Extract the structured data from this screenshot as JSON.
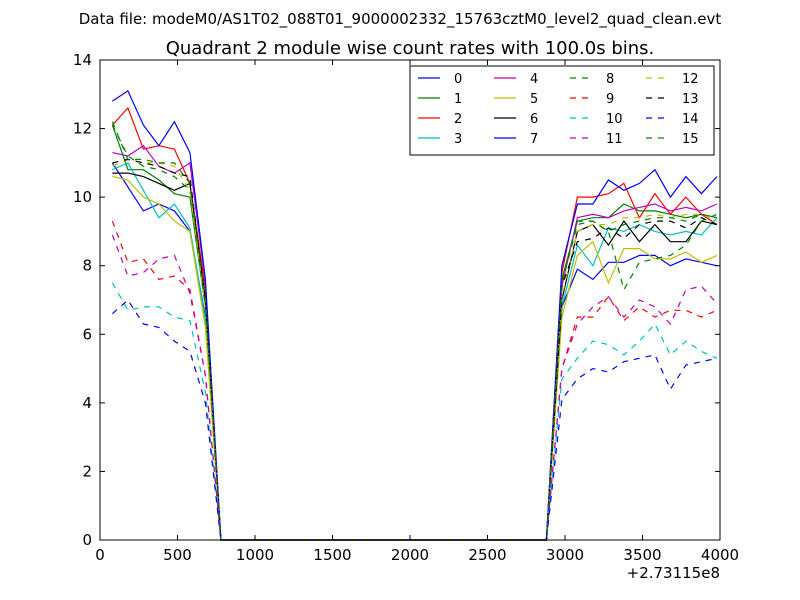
{
  "suptitle": "Data file: modeM0/AS1T02_088T01_9000002332_15763cztM0_level2_quad_clean.evt",
  "title": "Quadrant 2 module wise count rates with 100.0s bins.",
  "offset_label": "+2.73115e8",
  "chart_data": {
    "type": "line",
    "title": "Quadrant 2 module wise count rates with 100.0s bins.",
    "xlabel": "",
    "ylabel": "",
    "xlim": [
      0,
      4000
    ],
    "ylim": [
      0,
      14
    ],
    "x_offset": 273115000,
    "x_ticks": [
      0,
      500,
      1000,
      1500,
      2000,
      2500,
      3000,
      3500,
      4000
    ],
    "y_ticks": [
      0,
      2,
      4,
      6,
      8,
      10,
      12,
      14
    ],
    "grid": false,
    "legend_position": "top-right",
    "x": [
      80,
      180,
      280,
      380,
      480,
      580,
      680,
      780,
      880,
      980,
      1080,
      1180,
      1280,
      1380,
      1480,
      1580,
      1680,
      1780,
      1880,
      1980,
      2080,
      2180,
      2280,
      2380,
      2480,
      2580,
      2680,
      2780,
      2880,
      2980,
      3080,
      3180,
      3280,
      3380,
      3480,
      3580,
      3680,
      3780,
      3880,
      3980
    ],
    "series": [
      {
        "name": "0",
        "color": "#0000ff",
        "dash": "solid",
        "values": [
          11.0,
          10.3,
          9.6,
          9.8,
          9.6,
          9.0,
          6.5,
          0,
          0,
          0,
          0,
          0,
          0,
          0,
          0,
          0,
          0,
          0,
          0,
          0,
          0,
          0,
          0,
          0,
          0,
          0,
          0,
          0,
          0,
          6.8,
          7.9,
          7.6,
          8.1,
          8.1,
          8.3,
          8.3,
          8.0,
          8.2,
          8.1,
          8.0
        ]
      },
      {
        "name": "1",
        "color": "#008000",
        "dash": "solid",
        "values": [
          12.1,
          10.8,
          10.8,
          10.5,
          10.1,
          10.0,
          6.8,
          0,
          0,
          0,
          0,
          0,
          0,
          0,
          0,
          0,
          0,
          0,
          0,
          0,
          0,
          0,
          0,
          0,
          0,
          0,
          0,
          0,
          0,
          7.6,
          9.3,
          9.4,
          9.4,
          9.8,
          9.6,
          9.6,
          9.5,
          9.4,
          9.5,
          9.4
        ]
      },
      {
        "name": "2",
        "color": "#ff0000",
        "dash": "solid",
        "values": [
          12.1,
          12.6,
          11.4,
          11.5,
          11.4,
          10.4,
          7.3,
          0,
          0,
          0,
          0,
          0,
          0,
          0,
          0,
          0,
          0,
          0,
          0,
          0,
          0,
          0,
          0,
          0,
          0,
          0,
          0,
          0,
          0,
          7.8,
          10.0,
          10.0,
          10.1,
          10.4,
          9.4,
          10.1,
          9.5,
          10.0,
          9.5,
          9.2
        ]
      },
      {
        "name": "3",
        "color": "#00bfbf",
        "dash": "solid",
        "values": [
          10.8,
          11.0,
          10.2,
          9.4,
          9.8,
          9.1,
          6.4,
          0,
          0,
          0,
          0,
          0,
          0,
          0,
          0,
          0,
          0,
          0,
          0,
          0,
          0,
          0,
          0,
          0,
          0,
          0,
          0,
          0,
          0,
          6.8,
          8.6,
          8.0,
          9.1,
          9.0,
          9.2,
          9.0,
          8.9,
          9.0,
          8.9,
          9.4
        ]
      },
      {
        "name": "4",
        "color": "#bf00bf",
        "dash": "solid",
        "values": [
          11.3,
          11.2,
          11.5,
          10.9,
          10.7,
          11.0,
          7.5,
          0,
          0,
          0,
          0,
          0,
          0,
          0,
          0,
          0,
          0,
          0,
          0,
          0,
          0,
          0,
          0,
          0,
          0,
          0,
          0,
          0,
          0,
          7.4,
          9.4,
          9.5,
          9.4,
          9.6,
          9.7,
          9.8,
          9.6,
          9.7,
          9.6,
          9.8
        ]
      },
      {
        "name": "5",
        "color": "#bfbf00",
        "dash": "solid",
        "values": [
          10.6,
          10.5,
          10.0,
          9.8,
          9.3,
          9.0,
          6.2,
          0,
          0,
          0,
          0,
          0,
          0,
          0,
          0,
          0,
          0,
          0,
          0,
          0,
          0,
          0,
          0,
          0,
          0,
          0,
          0,
          0,
          0,
          6.5,
          8.3,
          8.7,
          7.5,
          8.5,
          8.5,
          8.2,
          8.2,
          8.4,
          8.1,
          8.3
        ]
      },
      {
        "name": "6",
        "color": "#000000",
        "dash": "solid",
        "values": [
          10.7,
          10.7,
          10.6,
          10.4,
          10.2,
          10.4,
          7.0,
          0,
          0,
          0,
          0,
          0,
          0,
          0,
          0,
          0,
          0,
          0,
          0,
          0,
          0,
          0,
          0,
          0,
          0,
          0,
          0,
          0,
          0,
          7.0,
          9.0,
          9.2,
          8.6,
          9.3,
          8.7,
          9.2,
          8.7,
          8.7,
          9.3,
          9.2
        ]
      },
      {
        "name": "7",
        "color": "#0000ff",
        "dash": "solid",
        "values": [
          12.8,
          13.1,
          12.1,
          11.5,
          12.2,
          11.3,
          7.6,
          0,
          0,
          0,
          0,
          0,
          0,
          0,
          0,
          0,
          0,
          0,
          0,
          0,
          0,
          0,
          0,
          0,
          0,
          0,
          0,
          0,
          0,
          8.0,
          9.8,
          9.8,
          10.5,
          10.2,
          10.4,
          10.8,
          10.0,
          10.6,
          10.1,
          10.6
        ]
      },
      {
        "name": "8",
        "color": "#008000",
        "dash": "dashed",
        "values": [
          12.1,
          11.2,
          10.9,
          10.8,
          10.6,
          10.2,
          7.0,
          0,
          0,
          0,
          0,
          0,
          0,
          0,
          0,
          0,
          0,
          0,
          0,
          0,
          0,
          0,
          0,
          0,
          0,
          0,
          0,
          0,
          0,
          7.5,
          9.3,
          9.3,
          9.0,
          7.3,
          8.1,
          8.2,
          8.3,
          8.6,
          9.3,
          9.5
        ]
      },
      {
        "name": "9",
        "color": "#ff0000",
        "dash": "dashed",
        "values": [
          9.3,
          8.1,
          8.2,
          7.6,
          7.7,
          7.3,
          4.8,
          0,
          0,
          0,
          0,
          0,
          0,
          0,
          0,
          0,
          0,
          0,
          0,
          0,
          0,
          0,
          0,
          0,
          0,
          0,
          0,
          0,
          0,
          5.0,
          6.5,
          6.5,
          7.1,
          6.4,
          6.8,
          6.5,
          6.7,
          6.7,
          6.5,
          6.7
        ]
      },
      {
        "name": "10",
        "color": "#00bfbf",
        "dash": "dashed",
        "values": [
          7.5,
          6.7,
          6.8,
          6.8,
          6.5,
          6.4,
          4.3,
          0,
          0,
          0,
          0,
          0,
          0,
          0,
          0,
          0,
          0,
          0,
          0,
          0,
          0,
          0,
          0,
          0,
          0,
          0,
          0,
          0,
          0,
          4.7,
          5.3,
          5.8,
          5.7,
          5.4,
          5.8,
          6.3,
          5.4,
          5.8,
          5.5,
          5.3
        ]
      },
      {
        "name": "11",
        "color": "#bf00bf",
        "dash": "dashed",
        "values": [
          8.9,
          7.7,
          7.8,
          8.2,
          8.3,
          7.2,
          4.8,
          0,
          0,
          0,
          0,
          0,
          0,
          0,
          0,
          0,
          0,
          0,
          0,
          0,
          0,
          0,
          0,
          0,
          0,
          0,
          0,
          0,
          0,
          5.0,
          6.3,
          6.8,
          7.1,
          6.5,
          7.0,
          6.8,
          6.3,
          7.3,
          7.4,
          6.9
        ]
      },
      {
        "name": "12",
        "color": "#bfbf00",
        "dash": "dashed",
        "values": [
          10.9,
          11.1,
          11.0,
          11.0,
          10.9,
          10.2,
          6.8,
          0,
          0,
          0,
          0,
          0,
          0,
          0,
          0,
          0,
          0,
          0,
          0,
          0,
          0,
          0,
          0,
          0,
          0,
          0,
          0,
          0,
          0,
          7.1,
          9.0,
          9.2,
          9.2,
          9.4,
          9.4,
          9.5,
          9.4,
          9.5,
          9.5,
          9.3
        ]
      },
      {
        "name": "13",
        "color": "#000000",
        "dash": "dashed",
        "values": [
          11.0,
          11.1,
          11.0,
          10.9,
          10.7,
          10.6,
          7.0,
          0,
          0,
          0,
          0,
          0,
          0,
          0,
          0,
          0,
          0,
          0,
          0,
          0,
          0,
          0,
          0,
          0,
          0,
          0,
          0,
          0,
          0,
          7.4,
          8.7,
          8.8,
          9.1,
          8.8,
          9.2,
          9.3,
          9.3,
          9.1,
          9.4,
          9.2
        ]
      },
      {
        "name": "14",
        "color": "#0000ff",
        "dash": "dashed",
        "values": [
          6.6,
          7.0,
          6.3,
          6.2,
          5.8,
          5.5,
          4.0,
          0,
          0,
          0,
          0,
          0,
          0,
          0,
          0,
          0,
          0,
          0,
          0,
          0,
          0,
          0,
          0,
          0,
          0,
          0,
          0,
          0,
          0,
          4.1,
          4.7,
          5.0,
          4.9,
          5.2,
          5.3,
          5.4,
          4.4,
          5.1,
          5.2,
          5.3
        ]
      },
      {
        "name": "15",
        "color": "#008000",
        "dash": "dashed",
        "values": [
          12.2,
          11.1,
          11.1,
          11.0,
          11.0,
          10.4,
          7.0,
          0,
          0,
          0,
          0,
          0,
          0,
          0,
          0,
          0,
          0,
          0,
          0,
          0,
          0,
          0,
          0,
          0,
          0,
          0,
          0,
          0,
          0,
          7.5,
          9.2,
          9.3,
          9.0,
          9.2,
          9.3,
          9.4,
          9.4,
          9.3,
          9.5,
          9.4
        ]
      }
    ]
  }
}
